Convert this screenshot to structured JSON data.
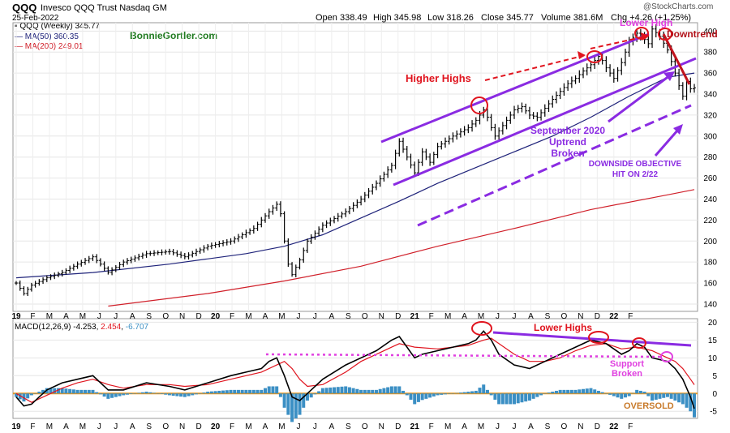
{
  "header": {
    "symbol": "QQQ",
    "name": "Invesco QQQ Trust Nasdaq GM",
    "date": "25-Feb-2022",
    "open": "Open 338.49",
    "high": "High 345.98",
    "low": "Low 318.26",
    "close": "Close 345.77",
    "volume": "Volume 381.6M",
    "chg": "Chg +4.26 (+1.25%)",
    "credit": "@StockCharts.com",
    "arrow": "▲"
  },
  "legend": {
    "price": "QQQ (Weekly) 345.77",
    "ma50": "MA(50) 360.35",
    "ma200": "MA(200) 249.01",
    "watermark": "BonnieGortler.com",
    "macd_name": "MACD(12,26,9)",
    "macd_v1": "-4.253",
    "macd_v2": "2.454",
    "macd_v3": "-6.707"
  },
  "annotations": {
    "higher_highs": "Higher Highs",
    "lower_high": "Lower High",
    "downtrend": "Downtrend",
    "uptrend_1": "September 2020",
    "uptrend_2": "Uptrend",
    "uptrend_3": "Broken",
    "objective_1": "DOWNSIDE OBJECTIVE",
    "objective_2": "HIT ON 2/22",
    "lower_highs": "Lower Highs",
    "support_1": "Support",
    "support_2": "Broken",
    "oversold": "OVERSOLD"
  },
  "colors": {
    "price_bar": "#000000",
    "ma50": "#1f237a",
    "ma200": "#d0202a",
    "trendline": "#8a2be2",
    "red_annotation": "#e0141e",
    "macd_line": "#000000",
    "signal_line": "#e0141e",
    "histogram": "#3b8fc4",
    "zero_line": "#e8951c",
    "watermark": "#1f7a1f",
    "oversold": "#c87a2a"
  },
  "chart_data": [
    {
      "type": "ohlc",
      "title": "QQQ (Weekly)",
      "x_tick_labels": [
        "19",
        "F",
        "M",
        "A",
        "M",
        "J",
        "J",
        "A",
        "S",
        "O",
        "N",
        "D",
        "20",
        "F",
        "M",
        "A",
        "M",
        "J",
        "J",
        "A",
        "S",
        "O",
        "N",
        "D",
        "21",
        "F",
        "M",
        "A",
        "M",
        "J",
        "J",
        "A",
        "S",
        "O",
        "N",
        "D",
        "22",
        "F"
      ],
      "y_ticks": [
        140,
        160,
        180,
        200,
        220,
        240,
        260,
        280,
        300,
        320,
        340,
        360,
        380,
        400
      ],
      "ylim": [
        133,
        408
      ],
      "series": [
        {
          "name": "QQQ",
          "points": [
            [
              0,
              160
            ],
            [
              2,
              150
            ],
            [
              4,
              158
            ],
            [
              8,
              165
            ],
            [
              12,
              170
            ],
            [
              16,
              178
            ],
            [
              20,
              185
            ],
            [
              22,
              178
            ],
            [
              24,
              170
            ],
            [
              28,
              180
            ],
            [
              34,
              188
            ],
            [
              40,
              190
            ],
            [
              44,
              185
            ],
            [
              50,
              195
            ],
            [
              56,
              200
            ],
            [
              60,
              208
            ],
            [
              62,
              212
            ],
            [
              64,
              220
            ],
            [
              66,
              228
            ],
            [
              68,
              235
            ],
            [
              69,
              226
            ],
            [
              70,
              200
            ],
            [
              71,
              178
            ],
            [
              72,
              168
            ],
            [
              74,
              182
            ],
            [
              76,
              200
            ],
            [
              80,
              215
            ],
            [
              86,
              228
            ],
            [
              90,
              240
            ],
            [
              94,
              255
            ],
            [
              98,
              272
            ],
            [
              100,
              295
            ],
            [
              102,
              280
            ],
            [
              104,
              265
            ],
            [
              106,
              285
            ],
            [
              108,
              275
            ],
            [
              110,
              290
            ],
            [
              114,
              300
            ],
            [
              118,
              308
            ],
            [
              120,
              315
            ],
            [
              122,
              325
            ],
            [
              123,
              318
            ],
            [
              124,
              308
            ],
            [
              125,
              300
            ],
            [
              128,
              315
            ],
            [
              130,
              325
            ],
            [
              132,
              328
            ],
            [
              134,
              320
            ],
            [
              136,
              318
            ],
            [
              140,
              335
            ],
            [
              144,
              350
            ],
            [
              146,
              355
            ],
            [
              148,
              362
            ],
            [
              150,
              368
            ],
            [
              152,
              376
            ],
            [
              153,
              372
            ],
            [
              154,
              365
            ],
            [
              156,
              355
            ],
            [
              158,
              370
            ],
            [
              160,
              390
            ],
            [
              162,
              398
            ],
            [
              164,
              392
            ],
            [
              165,
              388
            ],
            [
              166,
              402
            ],
            [
              168,
              395
            ],
            [
              170,
              382
            ],
            [
              172,
              360
            ],
            [
              173,
              348
            ],
            [
              174,
              338
            ],
            [
              175,
              352
            ],
            [
              176,
              345
            ],
            [
              177,
              346
            ]
          ]
        },
        {
          "name": "MA(50)",
          "points": [
            [
              0,
              165
            ],
            [
              20,
              170
            ],
            [
              40,
              178
            ],
            [
              60,
              188
            ],
            [
              70,
              195
            ],
            [
              80,
              206
            ],
            [
              90,
              222
            ],
            [
              100,
              238
            ],
            [
              110,
              255
            ],
            [
              120,
              270
            ],
            [
              130,
              285
            ],
            [
              140,
              300
            ],
            [
              150,
              318
            ],
            [
              160,
              338
            ],
            [
              170,
              356
            ],
            [
              177,
              360
            ]
          ]
        },
        {
          "name": "MA(200)",
          "points": [
            [
              24,
              138
            ],
            [
              50,
              150
            ],
            [
              70,
              162
            ],
            [
              90,
              176
            ],
            [
              110,
              195
            ],
            [
              130,
              212
            ],
            [
              150,
              230
            ],
            [
              170,
              244
            ],
            [
              177,
              249
            ]
          ]
        }
      ]
    },
    {
      "type": "line+histogram",
      "title": "MACD(12,26,9)",
      "y_ticks": [
        -5,
        0,
        5,
        10,
        15,
        20
      ],
      "ylim": [
        -7,
        21
      ],
      "macd": [
        [
          0,
          -1
        ],
        [
          2,
          -3.5
        ],
        [
          4,
          -3
        ],
        [
          6,
          -1
        ],
        [
          8,
          1
        ],
        [
          12,
          3
        ],
        [
          16,
          4
        ],
        [
          20,
          5
        ],
        [
          22,
          3
        ],
        [
          24,
          1
        ],
        [
          28,
          1
        ],
        [
          34,
          3
        ],
        [
          40,
          2
        ],
        [
          44,
          1
        ],
        [
          50,
          3
        ],
        [
          56,
          5
        ],
        [
          60,
          6
        ],
        [
          64,
          7
        ],
        [
          66,
          9
        ],
        [
          68,
          10
        ],
        [
          70,
          5
        ],
        [
          72,
          -1
        ],
        [
          74,
          -2
        ],
        [
          76,
          0
        ],
        [
          80,
          4
        ],
        [
          86,
          8
        ],
        [
          90,
          10
        ],
        [
          94,
          12
        ],
        [
          98,
          15
        ],
        [
          100,
          16
        ],
        [
          102,
          13
        ],
        [
          104,
          10
        ],
        [
          106,
          11
        ],
        [
          110,
          12
        ],
        [
          114,
          13
        ],
        [
          118,
          14
        ],
        [
          120,
          15
        ],
        [
          122,
          17.5
        ],
        [
          124,
          15
        ],
        [
          126,
          11
        ],
        [
          130,
          8
        ],
        [
          134,
          7
        ],
        [
          138,
          9
        ],
        [
          142,
          11
        ],
        [
          146,
          13
        ],
        [
          150,
          15
        ],
        [
          154,
          14
        ],
        [
          158,
          11
        ],
        [
          160,
          12
        ],
        [
          162,
          14
        ],
        [
          164,
          13
        ],
        [
          166,
          10
        ],
        [
          170,
          9
        ],
        [
          172,
          7
        ],
        [
          174,
          4
        ],
        [
          176,
          -1
        ],
        [
          177,
          -4.25
        ]
      ],
      "signal": [
        [
          0,
          0
        ],
        [
          4,
          -2.5
        ],
        [
          8,
          -0.5
        ],
        [
          12,
          1.5
        ],
        [
          16,
          3
        ],
        [
          20,
          4
        ],
        [
          24,
          2.5
        ],
        [
          28,
          1.5
        ],
        [
          34,
          2.5
        ],
        [
          40,
          2.5
        ],
        [
          44,
          2
        ],
        [
          50,
          2.5
        ],
        [
          56,
          4
        ],
        [
          60,
          5
        ],
        [
          64,
          6
        ],
        [
          68,
          8
        ],
        [
          70,
          9
        ],
        [
          72,
          7
        ],
        [
          74,
          4
        ],
        [
          76,
          2
        ],
        [
          80,
          2.5
        ],
        [
          86,
          6
        ],
        [
          90,
          9
        ],
        [
          94,
          11
        ],
        [
          98,
          13
        ],
        [
          100,
          14
        ],
        [
          104,
          13
        ],
        [
          110,
          12.5
        ],
        [
          114,
          13
        ],
        [
          118,
          13.5
        ],
        [
          122,
          15
        ],
        [
          124,
          15.5
        ],
        [
          126,
          14
        ],
        [
          130,
          11
        ],
        [
          134,
          9
        ],
        [
          138,
          9
        ],
        [
          142,
          10
        ],
        [
          146,
          12
        ],
        [
          150,
          13.5
        ],
        [
          154,
          14
        ],
        [
          158,
          12.5
        ],
        [
          162,
          13
        ],
        [
          166,
          12
        ],
        [
          170,
          10
        ],
        [
          172,
          9
        ],
        [
          174,
          7
        ],
        [
          176,
          4
        ],
        [
          177,
          2.45
        ]
      ],
      "histogram_last": -6.707
    }
  ]
}
